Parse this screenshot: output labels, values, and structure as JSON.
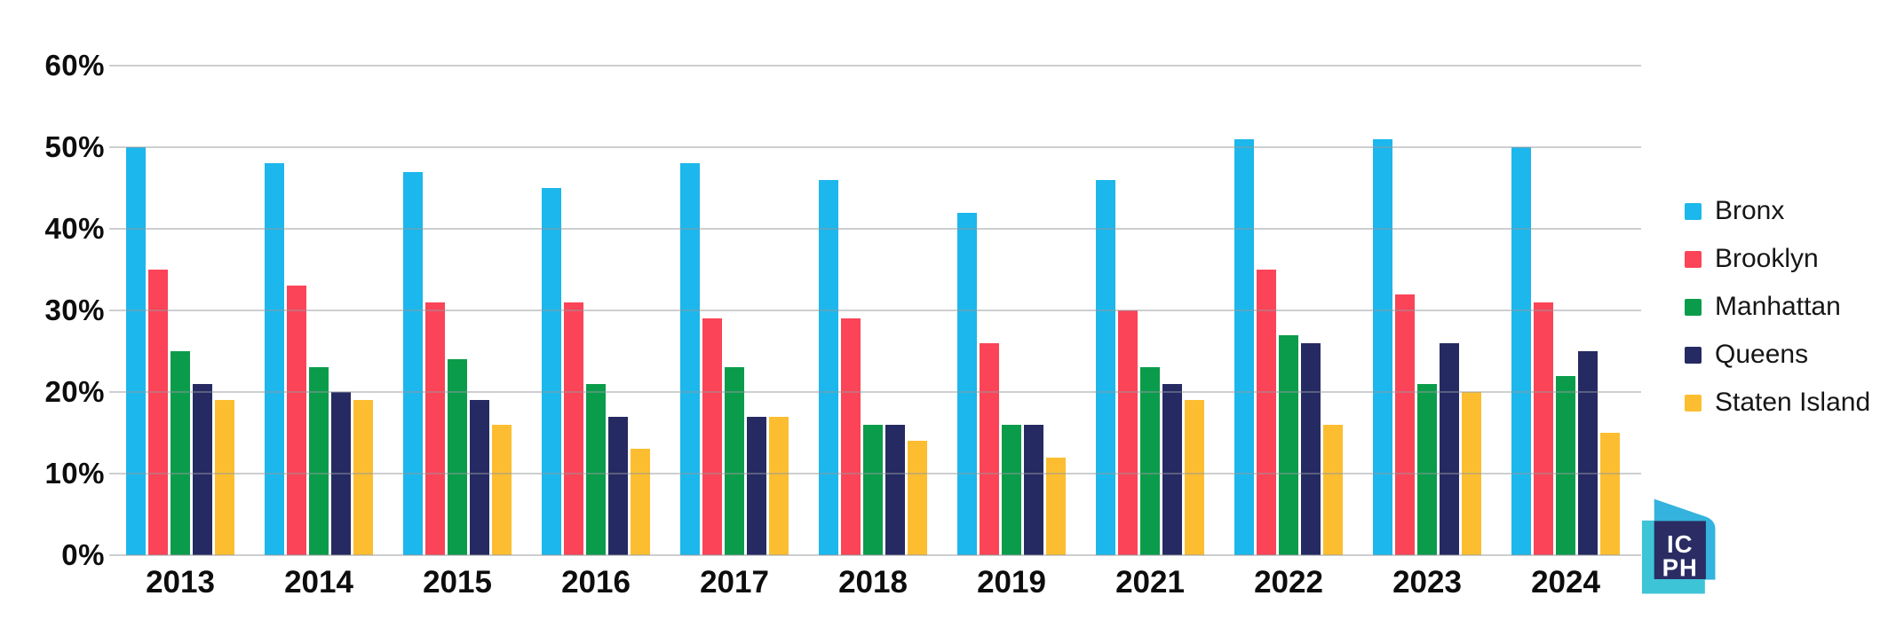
{
  "chart_data": {
    "type": "bar",
    "title": "",
    "xlabel": "",
    "ylabel": "",
    "categories": [
      "2013",
      "2014",
      "2015",
      "2016",
      "2017",
      "2018",
      "2019",
      "2021",
      "2022",
      "2023",
      "2024"
    ],
    "series": [
      {
        "name": "Bronx",
        "color": "#1CB7EC",
        "values": [
          50,
          48,
          47,
          45,
          48,
          46,
          42,
          46,
          51,
          51,
          50
        ]
      },
      {
        "name": "Brooklyn",
        "color": "#FB4458",
        "values": [
          35,
          33,
          31,
          31,
          29,
          29,
          26,
          30,
          35,
          32,
          31
        ]
      },
      {
        "name": "Manhattan",
        "color": "#0B9C4B",
        "values": [
          25,
          23,
          24,
          21,
          23,
          16,
          16,
          23,
          27,
          21,
          22
        ]
      },
      {
        "name": "Queens",
        "color": "#262A62",
        "values": [
          21,
          20,
          19,
          17,
          17,
          16,
          16,
          21,
          26,
          26,
          25
        ]
      },
      {
        "name": "Staten Island",
        "color": "#FCBE30",
        "values": [
          19,
          19,
          16,
          13,
          17,
          14,
          12,
          19,
          16,
          20,
          15
        ]
      }
    ],
    "y_ticks": [
      "0%",
      "10%",
      "20%",
      "30%",
      "40%",
      "50%",
      "60%"
    ],
    "ylim": [
      0,
      60
    ],
    "grid": true,
    "legend_position": "right"
  },
  "logo": {
    "line1": "IC",
    "line2": "PH",
    "colors": {
      "sky": "#33B3DD",
      "teal": "#3EC4D7",
      "navy": "#2A2C63"
    }
  }
}
